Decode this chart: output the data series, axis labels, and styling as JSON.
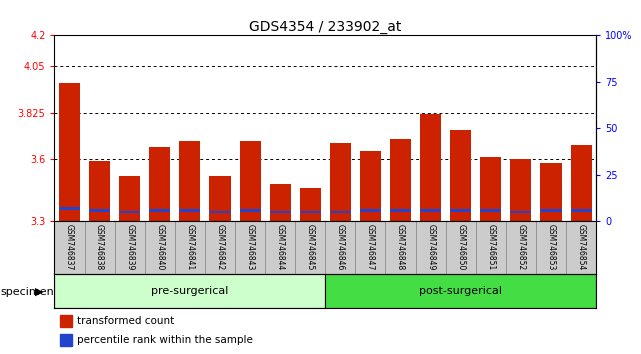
{
  "title": "GDS4354 / 233902_at",
  "samples": [
    "GSM746837",
    "GSM746838",
    "GSM746839",
    "GSM746840",
    "GSM746841",
    "GSM746842",
    "GSM746843",
    "GSM746844",
    "GSM746845",
    "GSM746846",
    "GSM746847",
    "GSM746848",
    "GSM746849",
    "GSM746850",
    "GSM746851",
    "GSM746852",
    "GSM746853",
    "GSM746854"
  ],
  "red_values": [
    3.97,
    3.59,
    3.52,
    3.66,
    3.69,
    3.52,
    3.69,
    3.48,
    3.46,
    3.68,
    3.64,
    3.7,
    3.82,
    3.74,
    3.61,
    3.6,
    3.58,
    3.67
  ],
  "blue_heights": [
    0.012,
    0.012,
    0.01,
    0.012,
    0.012,
    0.01,
    0.012,
    0.01,
    0.01,
    0.01,
    0.012,
    0.012,
    0.014,
    0.012,
    0.012,
    0.01,
    0.012,
    0.012
  ],
  "blue_bottoms": [
    3.355,
    3.345,
    3.34,
    3.345,
    3.345,
    3.34,
    3.345,
    3.34,
    3.34,
    3.34,
    3.345,
    3.345,
    3.345,
    3.345,
    3.345,
    3.34,
    3.345,
    3.345
  ],
  "ymin": 3.3,
  "ymax": 4.2,
  "yticks_left": [
    3.3,
    3.6,
    3.825,
    4.05,
    4.2
  ],
  "yticks_right": [
    0,
    25,
    50,
    75,
    100
  ],
  "grid_values": [
    4.05,
    3.825,
    3.6
  ],
  "pre_surgical_count": 9,
  "bar_color": "#cc2200",
  "blue_color": "#2244cc",
  "bg_color": "#ffffff",
  "pre_group_color": "#ccffcc",
  "post_group_color": "#44dd44",
  "tick_area_color": "#cccccc",
  "legend_red": "transformed count",
  "legend_blue": "percentile rank within the sample",
  "title_fontsize": 10,
  "tick_fontsize": 7,
  "bar_width": 0.7
}
